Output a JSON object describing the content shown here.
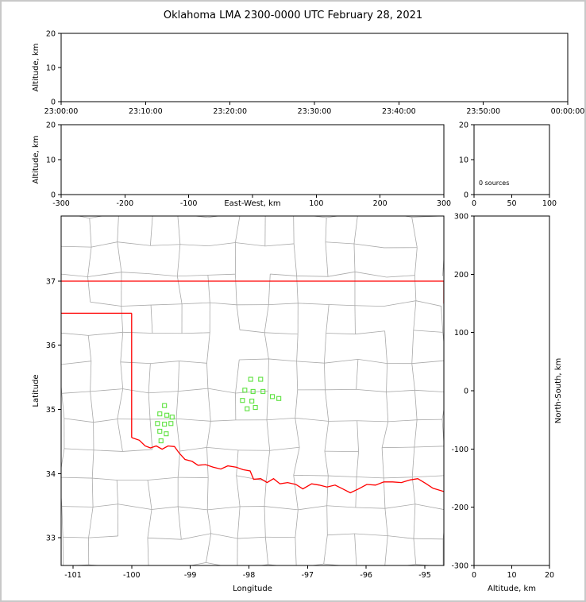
{
  "title": "Oklahoma LMA 2300-0000 UTC February 28, 2021",
  "colors": {
    "axis": "#000000",
    "county_line": "#a9a9a9",
    "state_border": "#ff0000",
    "source_marker": "#5ce23e",
    "background": "#ffffff",
    "frame_border": "#c8c8c8"
  },
  "chart_data": {
    "type": "scatter",
    "title": "Oklahoma LMA 2300-0000 UTC February 28, 2021",
    "panels": {
      "time_height": {
        "type": "scatter",
        "ylabel": "Altitude, km",
        "yticks": [
          0,
          10,
          20
        ],
        "ylim": [
          0,
          20
        ],
        "xtick_labels": [
          "23:00:00",
          "23:10:00",
          "23:20:00",
          "23:30:00",
          "23:40:00",
          "23:50:00",
          "00:00:00"
        ],
        "points": []
      },
      "ew_height": {
        "type": "scatter",
        "xlabel": "East-West, km",
        "ylabel": "Altitude, km",
        "xticks": [
          -300,
          -200,
          -100,
          0,
          100,
          200,
          300
        ],
        "yticks": [
          0,
          10,
          20
        ],
        "xlim": [
          -300,
          300
        ],
        "ylim": [
          0,
          20
        ],
        "points": []
      },
      "alt_histogram": {
        "type": "line",
        "annotation": "0 sources",
        "xticks": [
          0,
          50,
          100
        ],
        "yticks": [
          0,
          10,
          20
        ],
        "xlim": [
          0,
          100
        ],
        "ylim": [
          0,
          20
        ],
        "points": []
      },
      "map": {
        "type": "scatter",
        "xlabel": "Longitude",
        "ylabel": "Latitude",
        "xticks": [
          -101,
          -100,
          -99,
          -98,
          -97,
          -96,
          -95
        ],
        "yticks": [
          33,
          34,
          35,
          36,
          37
        ],
        "xlim": [
          -101.203,
          -94.675
        ],
        "ylim": [
          32.567,
          38.015
        ],
        "sources": [
          [
            -99.44,
            35.06
          ],
          [
            -99.52,
            34.93
          ],
          [
            -99.4,
            34.91
          ],
          [
            -99.31,
            34.88
          ],
          [
            -99.56,
            34.78
          ],
          [
            -99.44,
            34.77
          ],
          [
            -99.33,
            34.78
          ],
          [
            -99.52,
            34.66
          ],
          [
            -99.41,
            34.62
          ],
          [
            -99.5,
            34.51
          ],
          [
            -97.97,
            35.47
          ],
          [
            -97.8,
            35.47
          ],
          [
            -98.07,
            35.3
          ],
          [
            -97.93,
            35.28
          ],
          [
            -97.76,
            35.28
          ],
          [
            -98.11,
            35.14
          ],
          [
            -97.95,
            35.13
          ],
          [
            -98.03,
            35.01
          ],
          [
            -97.89,
            35.03
          ],
          [
            -97.6,
            35.2
          ],
          [
            -97.49,
            35.17
          ]
        ],
        "state_border": [
          [
            [
              -101.203,
              37.0
            ],
            [
              -94.675,
              37.0
            ]
          ],
          [
            [
              -94.675,
              37.0
            ],
            [
              -94.675,
              36.65
            ]
          ],
          [
            [
              -101.203,
              36.5
            ],
            [
              -100.0,
              36.5
            ]
          ],
          [
            [
              -100.0,
              36.5
            ],
            [
              -100.0,
              34.56
            ]
          ],
          [
            [
              -100.0,
              34.56
            ],
            [
              -99.87,
              34.52
            ],
            [
              -99.77,
              34.43
            ],
            [
              -99.68,
              34.4
            ],
            [
              -99.58,
              34.43
            ],
            [
              -99.48,
              34.38
            ],
            [
              -99.38,
              34.43
            ],
            [
              -99.27,
              34.42
            ],
            [
              -99.19,
              34.32
            ],
            [
              -99.09,
              34.22
            ],
            [
              -98.97,
              34.19
            ],
            [
              -98.87,
              34.13
            ],
            [
              -98.74,
              34.14
            ],
            [
              -98.61,
              34.1
            ],
            [
              -98.48,
              34.07
            ],
            [
              -98.36,
              34.12
            ],
            [
              -98.22,
              34.1
            ],
            [
              -98.1,
              34.06
            ],
            [
              -97.98,
              34.04
            ],
            [
              -97.92,
              33.91
            ],
            [
              -97.8,
              33.92
            ],
            [
              -97.69,
              33.86
            ],
            [
              -97.58,
              33.92
            ],
            [
              -97.47,
              33.84
            ],
            [
              -97.34,
              33.86
            ],
            [
              -97.2,
              33.83
            ],
            [
              -97.08,
              33.76
            ],
            [
              -96.93,
              33.84
            ],
            [
              -96.8,
              33.82
            ],
            [
              -96.67,
              33.79
            ],
            [
              -96.53,
              33.82
            ],
            [
              -96.4,
              33.76
            ],
            [
              -96.27,
              33.7
            ],
            [
              -96.13,
              33.76
            ],
            [
              -95.99,
              33.83
            ],
            [
              -95.84,
              33.82
            ],
            [
              -95.7,
              33.87
            ],
            [
              -95.55,
              33.87
            ],
            [
              -95.4,
              33.86
            ],
            [
              -95.25,
              33.9
            ],
            [
              -95.12,
              33.92
            ],
            [
              -94.99,
              33.85
            ],
            [
              -94.86,
              33.77
            ],
            [
              -94.675,
              33.72
            ]
          ]
        ]
      },
      "ns_height": {
        "type": "scatter",
        "xlabel": "Altitude, km",
        "ylabel": "North-South, km",
        "xticks": [
          0,
          10,
          20
        ],
        "yticks": [
          -300,
          -200,
          -100,
          0,
          100,
          200,
          300
        ],
        "xlim": [
          0,
          20
        ],
        "ylim": [
          -300,
          300
        ],
        "points": []
      }
    }
  }
}
